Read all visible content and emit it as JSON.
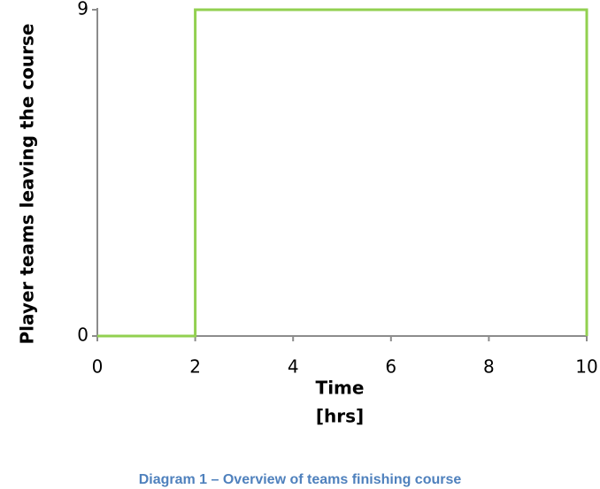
{
  "chart_data": {
    "type": "line",
    "x_label": "Time",
    "x_unit": "[hrs]",
    "y_label": "Player teams leaving the course",
    "caption": "Diagram 1 – Overview of teams finishing course",
    "x": [
      0,
      2,
      2,
      10,
      10
    ],
    "series": [
      {
        "name": "Player teams leaving the course",
        "color": "#92d050",
        "values": [
          0,
          0,
          9,
          9,
          0
        ]
      }
    ],
    "xlim": [
      0,
      10
    ],
    "xticks": [
      0,
      2,
      4,
      6,
      8,
      10
    ],
    "ylim": [
      0,
      9
    ],
    "yticks": [
      0,
      9
    ],
    "grid": false
  }
}
